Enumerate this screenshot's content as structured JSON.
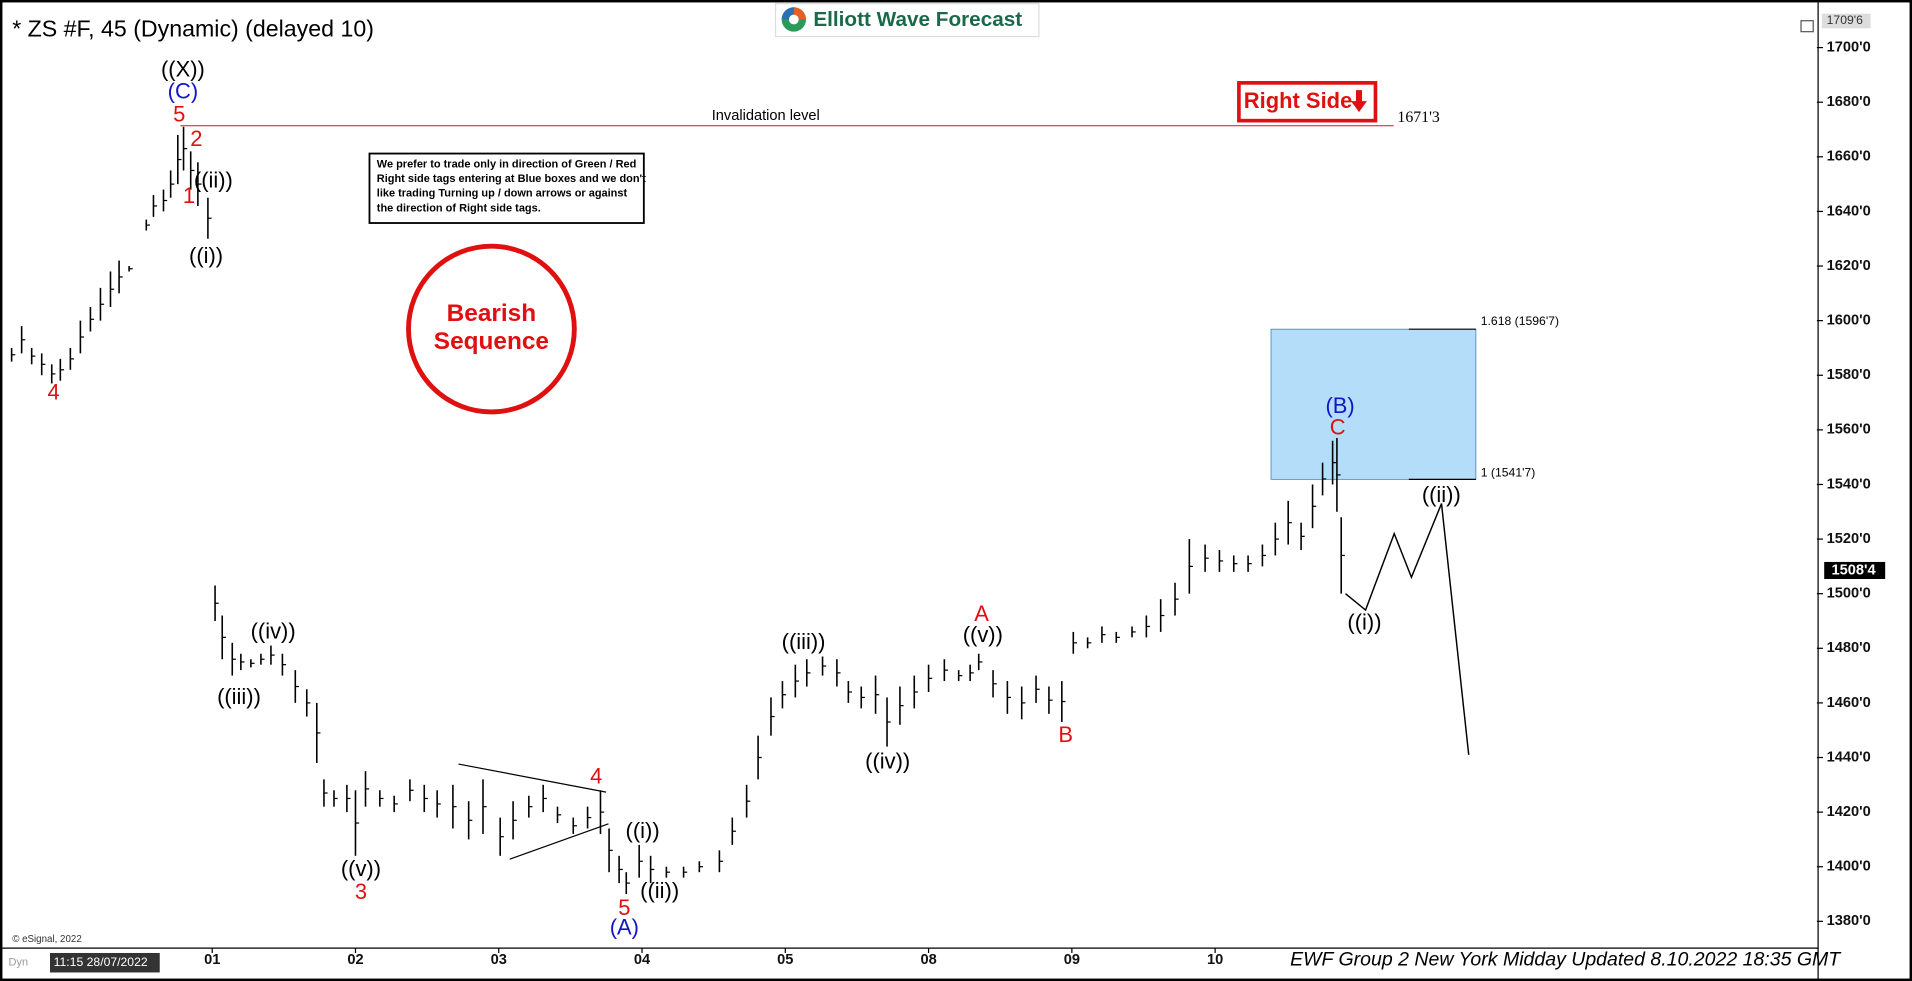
{
  "chart_data": {
    "type": "ohlc",
    "title": "* ZS #F, 45 (Dynamic) (delayed 10)",
    "logo": "Elliott Wave Forecast",
    "note_lines": [
      "We prefer to trade only in direction of Green / Red",
      "Right side tags entering at Blue boxes and we don't",
      "like trading Turning up / down arrows or against",
      "the direction of Right side tags."
    ],
    "badge": [
      "Bearish",
      "Sequence"
    ],
    "right_side": "Right Side",
    "footer": "EWF Group 2 New York Midday Updated 8.10.2022 18:35 GMT",
    "timestamp": "11:15 28/07/2022",
    "copyright": "© eSignal, 2022",
    "mode": "Dyn",
    "color": "#000000",
    "xlim": [
      -1.413,
      11.2
    ],
    "ylim": [
      1370.2,
      1715.2
    ],
    "xticks": [
      {
        "value": 0,
        "label": "01"
      },
      {
        "value": 1,
        "label": "02"
      },
      {
        "value": 2,
        "label": "03"
      },
      {
        "value": 3,
        "label": "04"
      },
      {
        "value": 4,
        "label": "05"
      },
      {
        "value": 5,
        "label": "08"
      },
      {
        "value": 6,
        "label": "09"
      },
      {
        "value": 7,
        "label": "10"
      }
    ],
    "yticks": [
      {
        "value": 1380,
        "label": "1380'0"
      },
      {
        "value": 1400,
        "label": "1400'0"
      },
      {
        "value": 1420,
        "label": "1420'0"
      },
      {
        "value": 1440,
        "label": "1440'0"
      },
      {
        "value": 1460,
        "label": "1460'0"
      },
      {
        "value": 1480,
        "label": "1480'0"
      },
      {
        "value": 1500,
        "label": "1500'0"
      },
      {
        "value": 1520,
        "label": "1520'0"
      },
      {
        "value": 1540,
        "label": "1540'0"
      },
      {
        "value": 1560,
        "label": "1560'0"
      },
      {
        "value": 1580,
        "label": "1580'0"
      },
      {
        "value": 1600,
        "label": "1600'0"
      },
      {
        "value": 1620,
        "label": "1620'0"
      },
      {
        "value": 1640,
        "label": "1640'0"
      },
      {
        "value": 1660,
        "label": "1660'0"
      },
      {
        "value": 1680,
        "label": "1680'0"
      },
      {
        "value": 1700,
        "label": "1700'0"
      }
    ],
    "x": [
      -1.4,
      -1.33,
      -1.26,
      -1.19,
      -1.12,
      -1.06,
      -0.99,
      -0.92,
      -0.85,
      -0.78,
      -0.71,
      -0.65,
      -0.58,
      -0.46,
      -0.41,
      -0.34,
      -0.29,
      -0.24,
      -0.2,
      -0.15,
      -0.1,
      -0.03,
      0.02,
      0.07,
      0.14,
      0.2,
      0.27,
      0.34,
      0.41,
      0.49,
      0.58,
      0.66,
      0.73,
      0.78,
      0.85,
      0.94,
      1.0,
      1.07,
      1.17,
      1.27,
      1.38,
      1.48,
      1.57,
      1.68,
      1.79,
      1.89,
      2.01,
      2.1,
      2.21,
      2.31,
      2.41,
      2.52,
      2.62,
      2.71,
      2.77,
      2.84,
      2.89,
      2.98,
      3.06,
      3.17,
      3.29,
      3.4,
      3.54,
      3.63,
      3.73,
      3.81,
      3.9,
      3.98,
      4.07,
      4.15,
      4.26,
      4.36,
      4.44,
      4.53,
      4.63,
      4.71,
      4.8,
      4.9,
      5.0,
      5.11,
      5.21,
      5.29,
      5.35,
      5.45,
      5.55,
      5.65,
      5.75,
      5.84,
      5.93,
      6.01,
      6.11,
      6.21,
      6.31,
      6.42,
      6.52,
      6.62,
      6.72,
      6.82,
      6.93,
      7.03,
      7.13,
      7.23,
      7.33,
      7.42,
      7.51,
      7.6,
      7.68,
      7.75,
      7.82,
      7.85,
      7.88
    ],
    "high": [
      1590,
      1598,
      1590,
      1588,
      1584,
      1586,
      1590,
      1600,
      1605,
      1612,
      1618,
      1622,
      1620,
      1637,
      1646,
      1648,
      1655,
      1668,
      1671,
      1662,
      1658,
      1645,
      1503,
      1492,
      1482,
      1478,
      1476,
      1478,
      1481,
      1478,
      1472,
      1465,
      1460,
      1432,
      1428,
      1430,
      1428,
      1435,
      1428,
      1426,
      1432,
      1430,
      1428,
      1430,
      1424,
      1432,
      1418,
      1424,
      1426,
      1430,
      1422,
      1418,
      1422,
      1428,
      1414,
      1404,
      1398,
      1408,
      1404,
      1400,
      1400,
      1402,
      1406,
      1418,
      1430,
      1448,
      1462,
      1468,
      1474,
      1476,
      1477,
      1476,
      1468,
      1466,
      1470,
      1462,
      1466,
      1470,
      1474,
      1476,
      1472,
      1474,
      1478,
      1472,
      1468,
      1466,
      1470,
      1466,
      1468,
      1486,
      1484,
      1488,
      1486,
      1488,
      1492,
      1498,
      1504,
      1520,
      1518,
      1516,
      1514,
      1514,
      1518,
      1526,
      1534,
      1526,
      1540,
      1548,
      1556,
      1557,
      1528
    ],
    "low": [
      1585,
      1588,
      1584,
      1580,
      1577,
      1578,
      1582,
      1588,
      1596,
      1600,
      1605,
      1610,
      1618,
      1633,
      1638,
      1640,
      1645,
      1650,
      1655,
      1648,
      1642,
      1630,
      1490,
      1476,
      1470,
      1472,
      1473,
      1474,
      1474,
      1470,
      1460,
      1455,
      1438,
      1422,
      1422,
      1420,
      1404,
      1422,
      1422,
      1420,
      1424,
      1420,
      1418,
      1414,
      1410,
      1412,
      1404,
      1410,
      1418,
      1420,
      1416,
      1412,
      1414,
      1412,
      1398,
      1394,
      1390,
      1396,
      1394,
      1396,
      1396,
      1398,
      1398,
      1408,
      1418,
      1432,
      1448,
      1458,
      1462,
      1466,
      1470,
      1466,
      1460,
      1458,
      1456,
      1444,
      1452,
      1458,
      1464,
      1468,
      1468,
      1468,
      1472,
      1462,
      1456,
      1454,
      1460,
      1456,
      1453,
      1478,
      1480,
      1482,
      1482,
      1484,
      1484,
      1486,
      1492,
      1500,
      1508,
      1508,
      1508,
      1508,
      1510,
      1514,
      1518,
      1516,
      1524,
      1536,
      1540,
      1530,
      1500
    ],
    "projection": {
      "x": [
        7.91,
        8.05,
        8.25,
        8.37,
        8.58,
        8.77
      ],
      "y": [
        1500,
        1494,
        1522,
        1506,
        1533,
        1441
      ]
    },
    "invalidation": {
      "label": "Invalidation level",
      "value": 1671.375,
      "value_label": "1671'3"
    },
    "blue_box": {
      "x": [
        7.39,
        8.82
      ],
      "top": 1596.875,
      "bottom": 1541.875,
      "top_label": "1.618 (1596'7)",
      "bottom_label": "1 (1541'7)",
      "color": "#b3ddf8"
    },
    "last_price": {
      "value": 1508.5,
      "label": "1508'4"
    },
    "top_price": {
      "value": 1709.75,
      "label": "1709'6"
    },
    "wave_labels": [
      {
        "text": "((X))",
        "color": "#000000"
      },
      {
        "text": "(C)",
        "color": "#1414c8"
      },
      {
        "text": "5",
        "color": "#e01010"
      },
      {
        "text": "2",
        "color": "#e01010"
      },
      {
        "text": "((ii))",
        "color": "#000000"
      },
      {
        "text": "1",
        "color": "#e01010"
      },
      {
        "text": "((i))",
        "color": "#000000"
      },
      {
        "text": "4",
        "color": "#e01010"
      },
      {
        "text": "((iv))",
        "color": "#000000"
      },
      {
        "text": "((iii))",
        "color": "#000000"
      },
      {
        "text": "((v))",
        "color": "#000000"
      },
      {
        "text": "3",
        "color": "#e01010"
      },
      {
        "text": "4",
        "color": "#e01010"
      },
      {
        "text": "((i))",
        "color": "#000000"
      },
      {
        "text": "((ii))",
        "color": "#000000"
      },
      {
        "text": "5",
        "color": "#e01010"
      },
      {
        "text": "(A)",
        "color": "#1414c8"
      },
      {
        "text": "((iii))",
        "color": "#000000"
      },
      {
        "text": "((iv))",
        "color": "#000000"
      },
      {
        "text": "A",
        "color": "#e01010"
      },
      {
        "text": "((v))",
        "color": "#000000"
      },
      {
        "text": "B",
        "color": "#e01010"
      },
      {
        "text": "(B)",
        "color": "#1414c8"
      },
      {
        "text": "C",
        "color": "#e01010"
      },
      {
        "text": "((ii))",
        "color": "#000000"
      },
      {
        "text": "((i))",
        "color": "#000000"
      }
    ]
  }
}
